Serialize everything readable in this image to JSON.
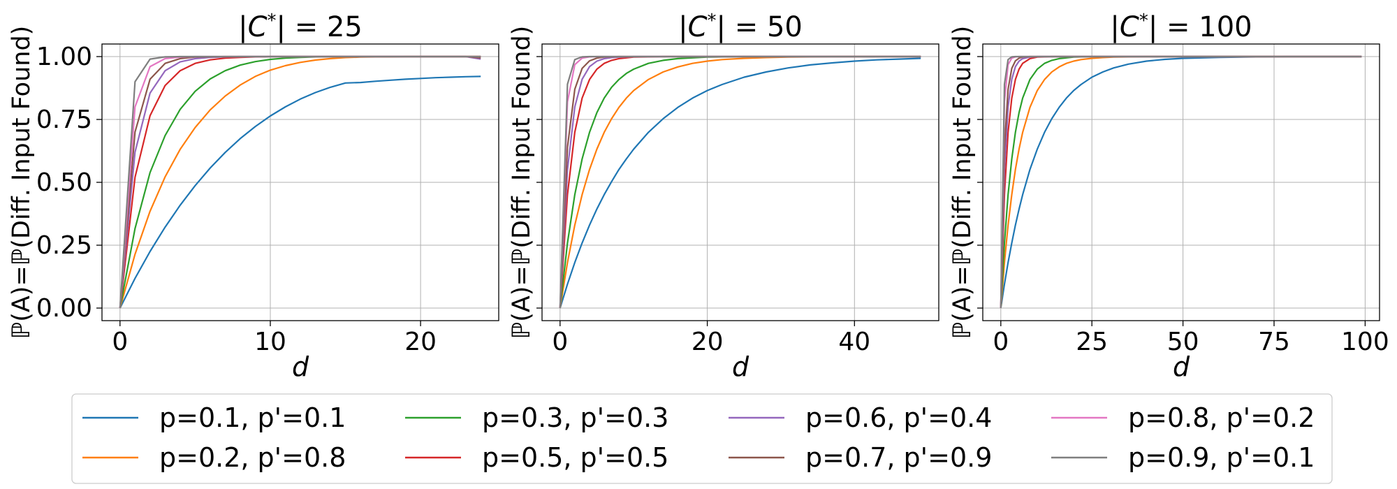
{
  "chart_data": [
    {
      "type": "line",
      "title": "|C*| = 25",
      "title_parts": {
        "bar_left": "|",
        "var": "C",
        "sup": "*",
        "bar_right": "|",
        "eq": " = 25"
      },
      "xlabel": "d",
      "ylabel": "ℙ(A)=ℙ(Diff. Input Found)",
      "xlim": [
        -1.2,
        25.2
      ],
      "ylim": [
        -0.05,
        1.05
      ],
      "xticks": [
        0,
        10,
        20
      ],
      "xtick_labels": [
        "0",
        "10",
        "20"
      ],
      "yticks": [
        0.0,
        0.25,
        0.5,
        0.75,
        1.0
      ],
      "ytick_labels": [
        "0.00",
        "0.25",
        "0.50",
        "0.75",
        "1.00"
      ],
      "grid": true,
      "x": [
        0,
        1,
        2,
        3,
        4,
        5,
        6,
        7,
        8,
        9,
        10,
        11,
        12,
        13,
        14,
        15,
        16,
        17,
        18,
        19,
        20,
        21,
        22,
        23,
        24
      ],
      "series": [
        {
          "values": [
            0.0,
            0.118,
            0.225,
            0.322,
            0.409,
            0.487,
            0.557,
            0.619,
            0.674,
            0.722,
            0.764,
            0.8,
            0.831,
            0.857,
            0.878,
            0.895,
            0.897,
            0.902,
            0.906,
            0.91,
            0.913,
            0.916,
            0.918,
            0.92,
            0.921
          ]
        },
        {
          "values": [
            0.0,
            0.214,
            0.385,
            0.522,
            0.631,
            0.718,
            0.788,
            0.843,
            0.887,
            0.921,
            0.946,
            0.964,
            0.977,
            0.986,
            0.992,
            0.996,
            0.998,
            0.999,
            0.999,
            1.0,
            1.0,
            1.0,
            1.0,
            1.0,
            1.0
          ]
        },
        {
          "values": [
            0.0,
            0.316,
            0.539,
            0.686,
            0.79,
            0.862,
            0.911,
            0.944,
            0.966,
            0.98,
            0.989,
            0.994,
            0.997,
            0.999,
            1.0,
            1.0,
            1.0,
            1.0,
            1.0,
            1.0,
            1.0,
            1.0,
            1.0,
            1.0,
            1.0
          ]
        },
        {
          "values": [
            0.0,
            0.52,
            0.765,
            0.885,
            0.944,
            0.973,
            0.987,
            0.994,
            0.997,
            0.999,
            1.0,
            1.0,
            1.0,
            1.0,
            1.0,
            1.0,
            1.0,
            1.0,
            1.0,
            1.0,
            1.0,
            1.0,
            1.0,
            1.0,
            1.0
          ]
        },
        {
          "values": [
            0.0,
            0.62,
            0.855,
            0.944,
            0.979,
            0.992,
            0.997,
            0.999,
            1.0,
            1.0,
            1.0,
            1.0,
            1.0,
            1.0,
            1.0,
            1.0,
            1.0,
            1.0,
            1.0,
            1.0,
            1.0,
            1.0,
            1.0,
            1.0,
            0.99
          ]
        },
        {
          "values": [
            0.0,
            0.7,
            0.91,
            0.973,
            0.992,
            0.998,
            0.999,
            1.0,
            1.0,
            1.0,
            1.0,
            1.0,
            1.0,
            1.0,
            1.0,
            1.0,
            1.0,
            1.0,
            1.0,
            1.0,
            1.0,
            1.0,
            1.0,
            1.0,
            0.995
          ]
        },
        {
          "values": [
            0.0,
            0.8,
            0.96,
            0.992,
            0.998,
            1.0,
            1.0,
            1.0,
            1.0,
            1.0,
            1.0,
            1.0,
            1.0,
            1.0,
            1.0,
            1.0,
            1.0,
            1.0,
            1.0,
            1.0,
            1.0,
            1.0,
            1.0,
            1.0,
            1.0
          ]
        },
        {
          "values": [
            0.0,
            0.9,
            0.99,
            0.999,
            1.0,
            1.0,
            1.0,
            1.0,
            1.0,
            1.0,
            1.0,
            1.0,
            1.0,
            1.0,
            1.0,
            1.0,
            1.0,
            1.0,
            1.0,
            1.0,
            1.0,
            1.0,
            1.0,
            1.0,
            1.0
          ]
        }
      ]
    },
    {
      "type": "line",
      "title": "|C*| = 50",
      "title_parts": {
        "bar_left": "|",
        "var": "C",
        "sup": "*",
        "bar_right": "|",
        "eq": " = 50"
      },
      "xlabel": "d",
      "ylabel": "ℙ(A)=ℙ(Diff. Input Found)",
      "xlim": [
        -2.45,
        51.45
      ],
      "ylim": [
        -0.05,
        1.05
      ],
      "xticks": [
        0,
        20,
        40
      ],
      "xtick_labels": [
        "0",
        "20",
        "40"
      ],
      "yticks": [
        0.0,
        0.25,
        0.5,
        0.75,
        1.0
      ],
      "ytick_labels": [
        "0.00",
        "0.25",
        "0.50",
        "0.75",
        "1.00"
      ],
      "grid": true,
      "x": [
        0,
        1,
        2,
        3,
        4,
        5,
        6,
        7,
        8,
        9,
        10,
        12,
        14,
        16,
        18,
        20,
        22,
        25,
        28,
        31,
        34,
        37,
        40,
        43,
        46,
        49
      ],
      "series": [
        {
          "values": [
            0.0,
            0.095,
            0.181,
            0.259,
            0.33,
            0.394,
            0.451,
            0.503,
            0.551,
            0.593,
            0.632,
            0.699,
            0.753,
            0.798,
            0.835,
            0.865,
            0.889,
            0.918,
            0.939,
            0.955,
            0.967,
            0.975,
            0.982,
            0.987,
            0.99,
            0.993
          ]
        },
        {
          "values": [
            0.0,
            0.181,
            0.33,
            0.451,
            0.551,
            0.632,
            0.699,
            0.753,
            0.798,
            0.835,
            0.865,
            0.909,
            0.939,
            0.959,
            0.973,
            0.982,
            0.988,
            0.993,
            0.996,
            0.998,
            0.999,
            1.0,
            1.0,
            1.0,
            1.0,
            1.0
          ]
        },
        {
          "values": [
            0.0,
            0.259,
            0.451,
            0.593,
            0.699,
            0.777,
            0.835,
            0.878,
            0.909,
            0.933,
            0.95,
            0.973,
            0.985,
            0.992,
            0.995,
            0.998,
            0.999,
            1.0,
            1.0,
            1.0,
            1.0,
            1.0,
            1.0,
            1.0,
            1.0,
            1.0
          ]
        },
        {
          "values": [
            0.0,
            0.451,
            0.699,
            0.835,
            0.909,
            0.95,
            0.973,
            0.985,
            0.992,
            0.995,
            0.998,
            0.999,
            1.0,
            1.0,
            1.0,
            1.0,
            1.0,
            1.0,
            1.0,
            1.0,
            1.0,
            1.0,
            1.0,
            1.0,
            1.0,
            1.0
          ]
        },
        {
          "values": [
            0.0,
            0.55,
            0.8,
            0.91,
            0.96,
            0.982,
            0.992,
            0.996,
            0.998,
            0.999,
            1.0,
            1.0,
            1.0,
            1.0,
            1.0,
            1.0,
            1.0,
            1.0,
            1.0,
            1.0,
            1.0,
            1.0,
            1.0,
            1.0,
            1.0,
            1.0
          ]
        },
        {
          "values": [
            0.0,
            0.64,
            0.87,
            0.953,
            0.983,
            0.994,
            0.998,
            0.999,
            1.0,
            1.0,
            1.0,
            1.0,
            1.0,
            1.0,
            1.0,
            1.0,
            1.0,
            1.0,
            1.0,
            1.0,
            1.0,
            1.0,
            1.0,
            1.0,
            1.0,
            1.0
          ]
        },
        {
          "values": [
            0.0,
            0.82,
            0.968,
            0.994,
            0.999,
            1.0,
            1.0,
            1.0,
            1.0,
            1.0,
            1.0,
            1.0,
            1.0,
            1.0,
            1.0,
            1.0,
            1.0,
            1.0,
            1.0,
            1.0,
            1.0,
            1.0,
            1.0,
            1.0,
            1.0,
            1.0
          ]
        },
        {
          "values": [
            0.0,
            0.89,
            0.988,
            0.999,
            1.0,
            1.0,
            1.0,
            1.0,
            1.0,
            1.0,
            1.0,
            1.0,
            1.0,
            1.0,
            1.0,
            1.0,
            1.0,
            1.0,
            1.0,
            1.0,
            1.0,
            1.0,
            1.0,
            1.0,
            1.0,
            1.0
          ]
        }
      ]
    },
    {
      "type": "line",
      "title": "|C*| = 100",
      "title_parts": {
        "bar_left": "|",
        "var": "C",
        "sup": "*",
        "bar_right": "|",
        "eq": " = 100"
      },
      "xlabel": "d",
      "ylabel": "ℙ(A)=ℙ(Diff. Input Found)",
      "xlim": [
        -4.95,
        103.95
      ],
      "ylim": [
        -0.05,
        1.05
      ],
      "xticks": [
        0,
        25,
        50,
        75,
        100
      ],
      "xtick_labels": [
        "0",
        "25",
        "50",
        "75",
        "100"
      ],
      "yticks": [
        0.0,
        0.25,
        0.5,
        0.75,
        1.0
      ],
      "ytick_labels": [
        "0.00",
        "0.25",
        "0.50",
        "0.75",
        "1.00"
      ],
      "grid": true,
      "x": [
        0,
        1,
        2,
        3,
        4,
        5,
        6,
        8,
        10,
        12,
        14,
        16,
        18,
        20,
        22,
        25,
        28,
        31,
        35,
        40,
        45,
        50,
        60,
        70,
        80,
        90,
        99
      ],
      "series": [
        {
          "values": [
            0.0,
            0.095,
            0.181,
            0.259,
            0.33,
            0.393,
            0.451,
            0.551,
            0.632,
            0.699,
            0.753,
            0.798,
            0.835,
            0.865,
            0.889,
            0.918,
            0.939,
            0.955,
            0.97,
            0.982,
            0.989,
            0.993,
            0.997,
            0.999,
            1.0,
            1.0,
            1.0
          ]
        },
        {
          "values": [
            0.0,
            0.181,
            0.33,
            0.451,
            0.551,
            0.632,
            0.699,
            0.798,
            0.865,
            0.909,
            0.939,
            0.959,
            0.973,
            0.982,
            0.988,
            0.993,
            0.996,
            0.998,
            0.999,
            1.0,
            1.0,
            1.0,
            1.0,
            1.0,
            1.0,
            1.0,
            1.0
          ]
        },
        {
          "values": [
            0.0,
            0.259,
            0.451,
            0.593,
            0.699,
            0.777,
            0.835,
            0.909,
            0.95,
            0.973,
            0.985,
            0.992,
            0.995,
            0.998,
            0.999,
            1.0,
            1.0,
            1.0,
            1.0,
            1.0,
            1.0,
            1.0,
            1.0,
            1.0,
            1.0,
            1.0,
            1.0
          ]
        },
        {
          "values": [
            0.0,
            0.451,
            0.699,
            0.835,
            0.909,
            0.95,
            0.973,
            0.992,
            0.998,
            0.999,
            1.0,
            1.0,
            1.0,
            1.0,
            1.0,
            1.0,
            1.0,
            1.0,
            1.0,
            1.0,
            1.0,
            1.0,
            1.0,
            1.0,
            1.0,
            1.0,
            1.0
          ]
        },
        {
          "values": [
            0.0,
            0.55,
            0.8,
            0.91,
            0.96,
            0.982,
            0.992,
            0.998,
            1.0,
            1.0,
            1.0,
            1.0,
            1.0,
            1.0,
            1.0,
            1.0,
            1.0,
            1.0,
            1.0,
            1.0,
            1.0,
            1.0,
            1.0,
            1.0,
            1.0,
            1.0,
            1.0
          ]
        },
        {
          "values": [
            0.0,
            0.64,
            0.87,
            0.953,
            0.983,
            0.994,
            0.998,
            1.0,
            1.0,
            1.0,
            1.0,
            1.0,
            1.0,
            1.0,
            1.0,
            1.0,
            1.0,
            1.0,
            1.0,
            1.0,
            1.0,
            1.0,
            1.0,
            1.0,
            1.0,
            1.0,
            1.0
          ]
        },
        {
          "values": [
            0.0,
            0.82,
            0.968,
            0.994,
            0.999,
            1.0,
            1.0,
            1.0,
            1.0,
            1.0,
            1.0,
            1.0,
            1.0,
            1.0,
            1.0,
            1.0,
            1.0,
            1.0,
            1.0,
            1.0,
            1.0,
            1.0,
            1.0,
            1.0,
            1.0,
            1.0,
            1.0
          ]
        },
        {
          "values": [
            0.0,
            0.89,
            0.988,
            0.999,
            1.0,
            1.0,
            1.0,
            1.0,
            1.0,
            1.0,
            1.0,
            1.0,
            1.0,
            1.0,
            1.0,
            1.0,
            1.0,
            1.0,
            1.0,
            1.0,
            1.0,
            1.0,
            1.0,
            1.0,
            1.0,
            1.0,
            1.0
          ]
        }
      ]
    }
  ],
  "legend": {
    "placement": "bottom-center",
    "columns": 4,
    "entries": [
      {
        "label": "p=0.1, p'=0.1",
        "color": "#1f77b4"
      },
      {
        "label": "p=0.2, p'=0.8",
        "color": "#ff7f0e"
      },
      {
        "label": "p=0.3, p'=0.3",
        "color": "#2ca02c"
      },
      {
        "label": "p=0.5, p'=0.5",
        "color": "#d62728"
      },
      {
        "label": "p=0.6, p'=0.4",
        "color": "#9467bd"
      },
      {
        "label": "p=0.7, p'=0.9",
        "color": "#8c564b"
      },
      {
        "label": "p=0.8, p'=0.2",
        "color": "#e377c2"
      },
      {
        "label": "p=0.9, p'=0.1",
        "color": "#7f7f7f"
      }
    ]
  }
}
